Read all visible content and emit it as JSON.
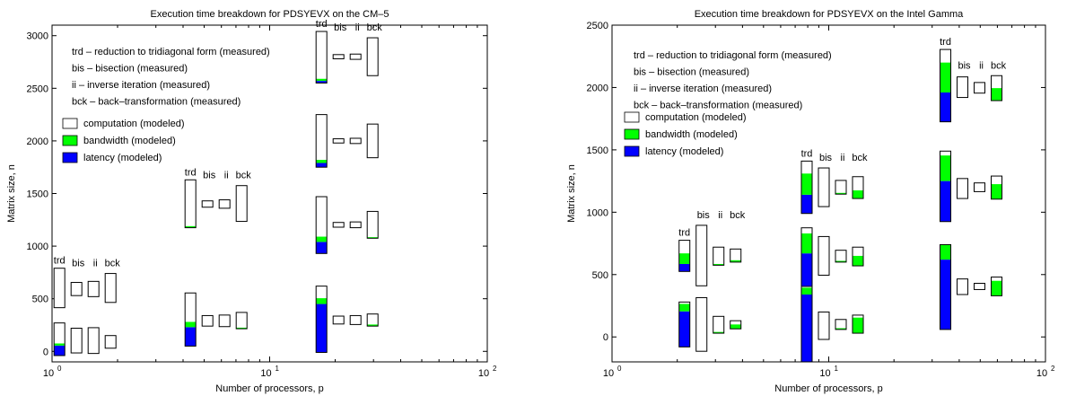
{
  "colors": {
    "computation": "#ffffff",
    "bandwidth": "#00ff00",
    "latency": "#0000ff",
    "outline": "#000000"
  },
  "legend": {
    "abbrev": [
      "trd – reduction to tridiagonal form (measured)",
      "bis – bisection (measured)",
      "ii – inverse iteration (measured)",
      "bck – back–transformation (measured)"
    ],
    "components": [
      "computation (modeled)",
      "bandwidth (modeled)",
      "latency (modeled)"
    ]
  },
  "chart_data": [
    {
      "type": "bar",
      "title": "Execution time breakdown for PDSYEVX on the CM–5",
      "xlabel": "Number of processors, p",
      "ylabel": "Matrix size, n",
      "xscale": "log",
      "xlim": [
        1,
        100
      ],
      "ylim": [
        -100,
        3100
      ],
      "xticks": [
        "10",
        "10",
        "10"
      ],
      "xtick_exponents": [
        "0",
        "1",
        "2"
      ],
      "yticks": [
        "0",
        "500",
        "1000",
        "1500",
        "2000",
        "2500",
        "3000"
      ],
      "phase_labels": [
        "trd",
        "bis",
        "ii",
        "bck"
      ],
      "groups": [
        {
          "p": 1.5,
          "bars": [
            {
              "phase": "trd",
              "bottom": 415,
              "top": 790,
              "latency": 0,
              "bandwidth": 0
            },
            {
              "phase": "bis",
              "bottom": 530,
              "top": 655,
              "latency": 0,
              "bandwidth": 0
            },
            {
              "phase": "ii",
              "bottom": 520,
              "top": 665,
              "latency": 0,
              "bandwidth": 0
            },
            {
              "phase": "bck",
              "bottom": 465,
              "top": 740,
              "latency": 0,
              "bandwidth": 0
            }
          ]
        },
        {
          "p": 1.5,
          "bars": [
            {
              "phase": "trd",
              "bottom": -40,
              "top": 270,
              "latency": 95,
              "bandwidth": 20
            },
            {
              "phase": "bis",
              "bottom": -15,
              "top": 220,
              "latency": 0,
              "bandwidth": 0
            },
            {
              "phase": "ii",
              "bottom": -20,
              "top": 225,
              "latency": 0,
              "bandwidth": 0
            },
            {
              "phase": "bck",
              "bottom": 30,
              "top": 150,
              "latency": 0,
              "bandwidth": 0
            }
          ]
        },
        {
          "p": 6,
          "bars": [
            {
              "phase": "trd",
              "bottom": 1175,
              "top": 1630,
              "latency": 0,
              "bandwidth": 15
            },
            {
              "phase": "bis",
              "bottom": 1370,
              "top": 1430,
              "latency": 0,
              "bandwidth": 0
            },
            {
              "phase": "ii",
              "bottom": 1360,
              "top": 1440,
              "latency": 0,
              "bandwidth": 0
            },
            {
              "phase": "bck",
              "bottom": 1235,
              "top": 1575,
              "latency": 0,
              "bandwidth": 0
            }
          ]
        },
        {
          "p": 6,
          "bars": [
            {
              "phase": "trd",
              "bottom": 50,
              "top": 555,
              "latency": 180,
              "bandwidth": 50
            },
            {
              "phase": "bis",
              "bottom": 240,
              "top": 340,
              "latency": 0,
              "bandwidth": 0
            },
            {
              "phase": "ii",
              "bottom": 235,
              "top": 345,
              "latency": 0,
              "bandwidth": 0
            },
            {
              "phase": "bck",
              "bottom": 215,
              "top": 370,
              "latency": 0,
              "bandwidth": 10
            }
          ]
        },
        {
          "p": 24,
          "bars": [
            {
              "phase": "trd",
              "bottom": 2550,
              "top": 3040,
              "latency": 20,
              "bandwidth": 20
            },
            {
              "phase": "bis",
              "bottom": 2780,
              "top": 2820,
              "latency": 0,
              "bandwidth": 0
            },
            {
              "phase": "ii",
              "bottom": 2775,
              "top": 2825,
              "latency": 0,
              "bandwidth": 0
            },
            {
              "phase": "bck",
              "bottom": 2620,
              "top": 2980,
              "latency": 0,
              "bandwidth": 0
            }
          ]
        },
        {
          "p": 24,
          "bars": [
            {
              "phase": "trd",
              "bottom": 1750,
              "top": 2250,
              "latency": 40,
              "bandwidth": 30
            },
            {
              "phase": "bis",
              "bottom": 1980,
              "top": 2020,
              "latency": 0,
              "bandwidth": 0
            },
            {
              "phase": "ii",
              "bottom": 1975,
              "top": 2025,
              "latency": 0,
              "bandwidth": 0
            },
            {
              "phase": "bck",
              "bottom": 1840,
              "top": 2160,
              "latency": 0,
              "bandwidth": 0
            }
          ]
        },
        {
          "p": 24,
          "bars": [
            {
              "phase": "trd",
              "bottom": 930,
              "top": 1470,
              "latency": 110,
              "bandwidth": 50
            },
            {
              "phase": "bis",
              "bottom": 1180,
              "top": 1225,
              "latency": 0,
              "bandwidth": 0
            },
            {
              "phase": "ii",
              "bottom": 1175,
              "top": 1230,
              "latency": 0,
              "bandwidth": 0
            },
            {
              "phase": "bck",
              "bottom": 1075,
              "top": 1330,
              "latency": 0,
              "bandwidth": 10
            }
          ]
        },
        {
          "p": 24,
          "bars": [
            {
              "phase": "trd",
              "bottom": -10,
              "top": 620,
              "latency": 460,
              "bandwidth": 55
            },
            {
              "phase": "bis",
              "bottom": 260,
              "top": 335,
              "latency": 0,
              "bandwidth": 0
            },
            {
              "phase": "ii",
              "bottom": 255,
              "top": 340,
              "latency": 0,
              "bandwidth": 0
            },
            {
              "phase": "bck",
              "bottom": 240,
              "top": 355,
              "latency": 0,
              "bandwidth": 15
            }
          ]
        }
      ]
    },
    {
      "type": "bar",
      "title": "Execution time breakdown for PDSYEVX on the Intel Gamma",
      "xlabel": "Number of processors, p",
      "ylabel": "Matrix size, n",
      "xscale": "log",
      "xlim": [
        1,
        100
      ],
      "ylim": [
        -200,
        2500
      ],
      "xticks": [
        "10",
        "10",
        "10"
      ],
      "xtick_exponents": [
        "0",
        "1",
        "2"
      ],
      "yticks": [
        "0",
        "500",
        "1000",
        "1500",
        "2000",
        "2500"
      ],
      "phase_labels": [
        "trd",
        "bis",
        "ii",
        "bck"
      ],
      "groups": [
        {
          "p": 3,
          "bars": [
            {
              "phase": "trd",
              "bottom": 525,
              "top": 775,
              "latency": 60,
              "bandwidth": 85
            },
            {
              "phase": "bis",
              "bottom": 410,
              "top": 895,
              "latency": 0,
              "bandwidth": 0
            },
            {
              "phase": "ii",
              "bottom": 575,
              "top": 720,
              "latency": 0,
              "bandwidth": 10
            },
            {
              "phase": "bck",
              "bottom": 600,
              "top": 705,
              "latency": 0,
              "bandwidth": 15
            }
          ]
        },
        {
          "p": 3,
          "bars": [
            {
              "phase": "trd",
              "bottom": -80,
              "top": 280,
              "latency": 285,
              "bandwidth": 60
            },
            {
              "phase": "bis",
              "bottom": -115,
              "top": 315,
              "latency": 0,
              "bandwidth": 0
            },
            {
              "phase": "ii",
              "bottom": 30,
              "top": 165,
              "latency": 0,
              "bandwidth": 10
            },
            {
              "phase": "bck",
              "bottom": 65,
              "top": 130,
              "latency": 0,
              "bandwidth": 35
            }
          ]
        },
        {
          "p": 11,
          "bars": [
            {
              "phase": "trd",
              "bottom": 990,
              "top": 1410,
              "latency": 150,
              "bandwidth": 170
            },
            {
              "phase": "bis",
              "bottom": 1045,
              "top": 1355,
              "latency": 0,
              "bandwidth": 0
            },
            {
              "phase": "ii",
              "bottom": 1145,
              "top": 1255,
              "latency": 0,
              "bandwidth": 10
            },
            {
              "phase": "bck",
              "bottom": 1110,
              "top": 1285,
              "latency": 0,
              "bandwidth": 65
            }
          ]
        },
        {
          "p": 11,
          "bars": [
            {
              "phase": "trd",
              "bottom": 330,
              "top": 875,
              "latency": 340,
              "bandwidth": 160
            },
            {
              "phase": "bis",
              "bottom": 495,
              "top": 805,
              "latency": 0,
              "bandwidth": 0
            },
            {
              "phase": "ii",
              "bottom": 600,
              "top": 695,
              "latency": 0,
              "bandwidth": 10
            },
            {
              "phase": "bck",
              "bottom": 570,
              "top": 720,
              "latency": 0,
              "bandwidth": 80
            }
          ]
        },
        {
          "p": 11,
          "bars": [
            {
              "phase": "trd",
              "bottom": -200,
              "top": 405,
              "latency": 540,
              "bandwidth": 55
            },
            {
              "phase": "bis",
              "bottom": -20,
              "top": 200,
              "latency": 0,
              "bandwidth": 0
            },
            {
              "phase": "ii",
              "bottom": 60,
              "top": 140,
              "latency": 0,
              "bandwidth": 10
            },
            {
              "phase": "bck",
              "bottom": 30,
              "top": 175,
              "latency": 0,
              "bandwidth": 125
            }
          ]
        },
        {
          "p": 48,
          "bars": [
            {
              "phase": "trd",
              "bottom": 1725,
              "top": 2305,
              "latency": 235,
              "bandwidth": 240
            },
            {
              "phase": "bis",
              "bottom": 1920,
              "top": 2085,
              "latency": 0,
              "bandwidth": 0
            },
            {
              "phase": "ii",
              "bottom": 1955,
              "top": 2040,
              "latency": 0,
              "bandwidth": 0
            },
            {
              "phase": "bck",
              "bottom": 1895,
              "top": 2095,
              "latency": 0,
              "bandwidth": 100
            }
          ]
        },
        {
          "p": 48,
          "bars": [
            {
              "phase": "trd",
              "bottom": 925,
              "top": 1490,
              "latency": 325,
              "bandwidth": 205
            },
            {
              "phase": "bis",
              "bottom": 1110,
              "top": 1270,
              "latency": 0,
              "bandwidth": 0
            },
            {
              "phase": "ii",
              "bottom": 1165,
              "top": 1235,
              "latency": 0,
              "bandwidth": 0
            },
            {
              "phase": "bck",
              "bottom": 1105,
              "top": 1290,
              "latency": 0,
              "bandwidth": 120
            }
          ]
        },
        {
          "p": 48,
          "bars": [
            {
              "phase": "trd",
              "bottom": 60,
              "top": 740,
              "latency": 560,
              "bandwidth": 120
            },
            {
              "phase": "bis",
              "bottom": 340,
              "top": 465,
              "latency": 0,
              "bandwidth": 0
            },
            {
              "phase": "ii",
              "bottom": 380,
              "top": 430,
              "latency": 0,
              "bandwidth": 0
            },
            {
              "phase": "bck",
              "bottom": 330,
              "top": 480,
              "latency": 0,
              "bandwidth": 120
            }
          ]
        }
      ]
    }
  ]
}
